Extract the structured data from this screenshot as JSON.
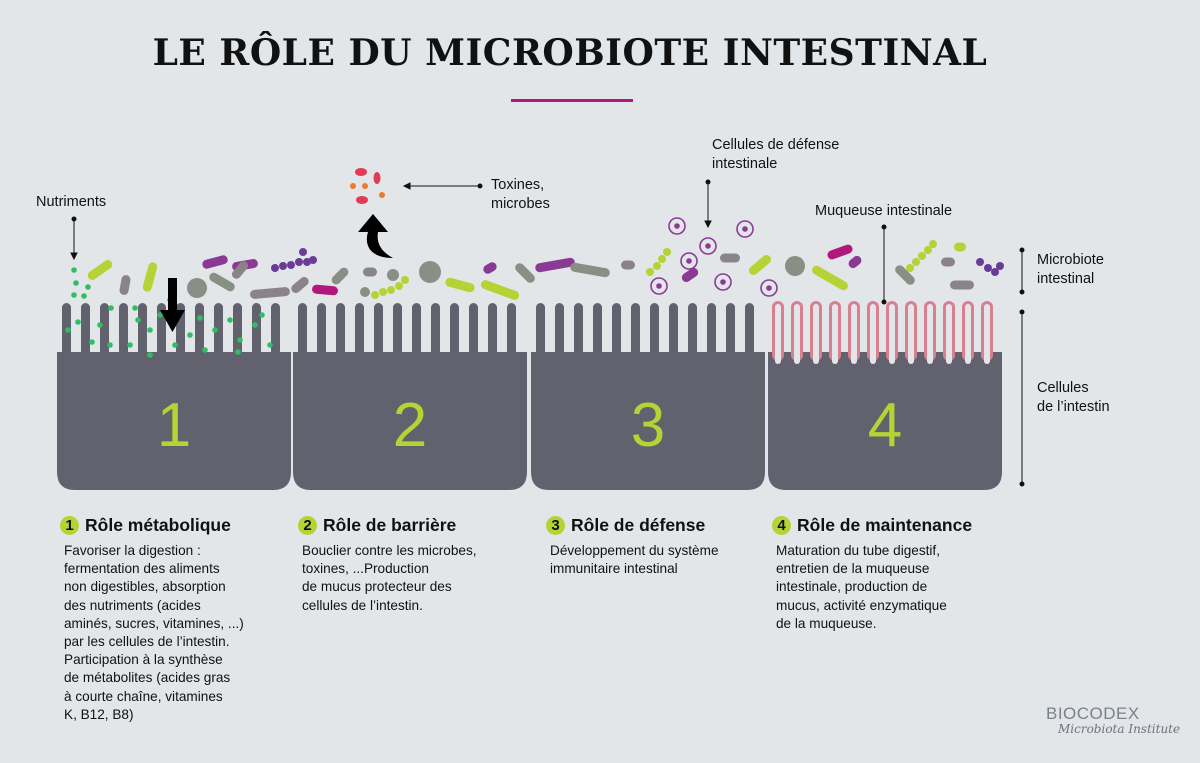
{
  "title": "LE RÔLE DU MICROBIOTE INTESTINAL",
  "colors": {
    "accent": "#b0187c",
    "cells": "#62626e",
    "number_green": "#b5d334",
    "mucosa_pink": "#d9808f",
    "nutrient_green": "#2fbf62"
  },
  "labels": {
    "nutriments": "Nutriments",
    "toxines": "Toxines,\nmicrobes",
    "defense_cells": "Cellules de défense\nintestinale",
    "mucosa": "Muqueuse intestinale",
    "microbiota": "Microbiote\nintestinal",
    "cells": "Cellules\nde l’intestin"
  },
  "blocks": [
    "1",
    "2",
    "3",
    "4"
  ],
  "sections": [
    {
      "num": "1",
      "title": "Rôle métabolique",
      "text": "Favoriser la digestion :\nfermentation des aliments\nnon digestibles, absorption\ndes nutriments (acides\naminés, sucres, vitamines, ...)\npar les cellules de l’intestin.\nParticipation à la synthèse\nde métabolites (acides gras\nà courte chaîne, vitamines\nK, B12, B8)"
    },
    {
      "num": "2",
      "title": "Rôle de barrière",
      "text": "Bouclier contre les microbes,\ntoxines, ...Production\nde mucus protecteur des\ncellules de l’intestin."
    },
    {
      "num": "3",
      "title": "Rôle de défense",
      "text": "Développement du système\nimmunitaire intestinal"
    },
    {
      "num": "4",
      "title": "Rôle de maintenance",
      "text": "Maturation du tube digestif,\nentretien de la muqueuse\nintestinale, production de\nmucus, activité enzymatique\nde la muqueuse."
    }
  ],
  "logo": {
    "brand": "BIOCODEX",
    "sub": "Microbiota Institute"
  }
}
